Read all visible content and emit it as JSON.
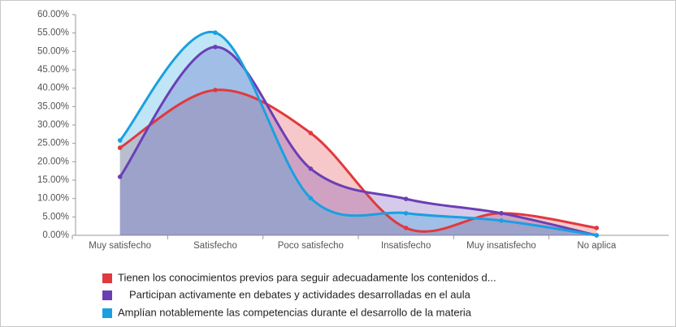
{
  "chart_data": {
    "type": "area",
    "categories": [
      "Muy satisfecho",
      "Satisfecho",
      "Poco satisfecho",
      "Insatisfecho",
      "Muy insatisfecho",
      "No aplica"
    ],
    "series": [
      {
        "name": "Tienen los conocimientos previos para seguir adecuadamente los contenidos d...",
        "color": "#e0393e",
        "values": [
          23.8,
          39.5,
          27.8,
          2,
          6,
          2
        ]
      },
      {
        "name": "Participan activamente en debates y actividades desarrolladas en el aula",
        "color": "#6a3fb5",
        "values": [
          15.9,
          51.2,
          18.1,
          9.9,
          6,
          0
        ]
      },
      {
        "name": "Amplían notablemente las competencias durante el desarrollo de la materia",
        "color": "#1aa0e0",
        "values": [
          25.8,
          55.1,
          10.1,
          6,
          4,
          0
        ]
      }
    ],
    "ylim": [
      0,
      60
    ],
    "yticks": [
      {
        "value": 0,
        "label": "0.00%"
      },
      {
        "value": 5,
        "label": "5.00%"
      },
      {
        "value": 10,
        "label": "10.00%"
      },
      {
        "value": 15,
        "label": "15.00%"
      },
      {
        "value": 20,
        "label": "20.00%"
      },
      {
        "value": 25,
        "label": "25.00%"
      },
      {
        "value": 30,
        "label": "30.00%"
      },
      {
        "value": 35,
        "label": "35.00%"
      },
      {
        "value": 40,
        "label": "40.00%"
      },
      {
        "value": 45,
        "label": "45.00%"
      },
      {
        "value": 50,
        "label": "50.00%"
      },
      {
        "value": 55,
        "label": "55.00%"
      },
      {
        "value": 60,
        "label": "60.00%"
      }
    ],
    "legend": "bottom"
  }
}
